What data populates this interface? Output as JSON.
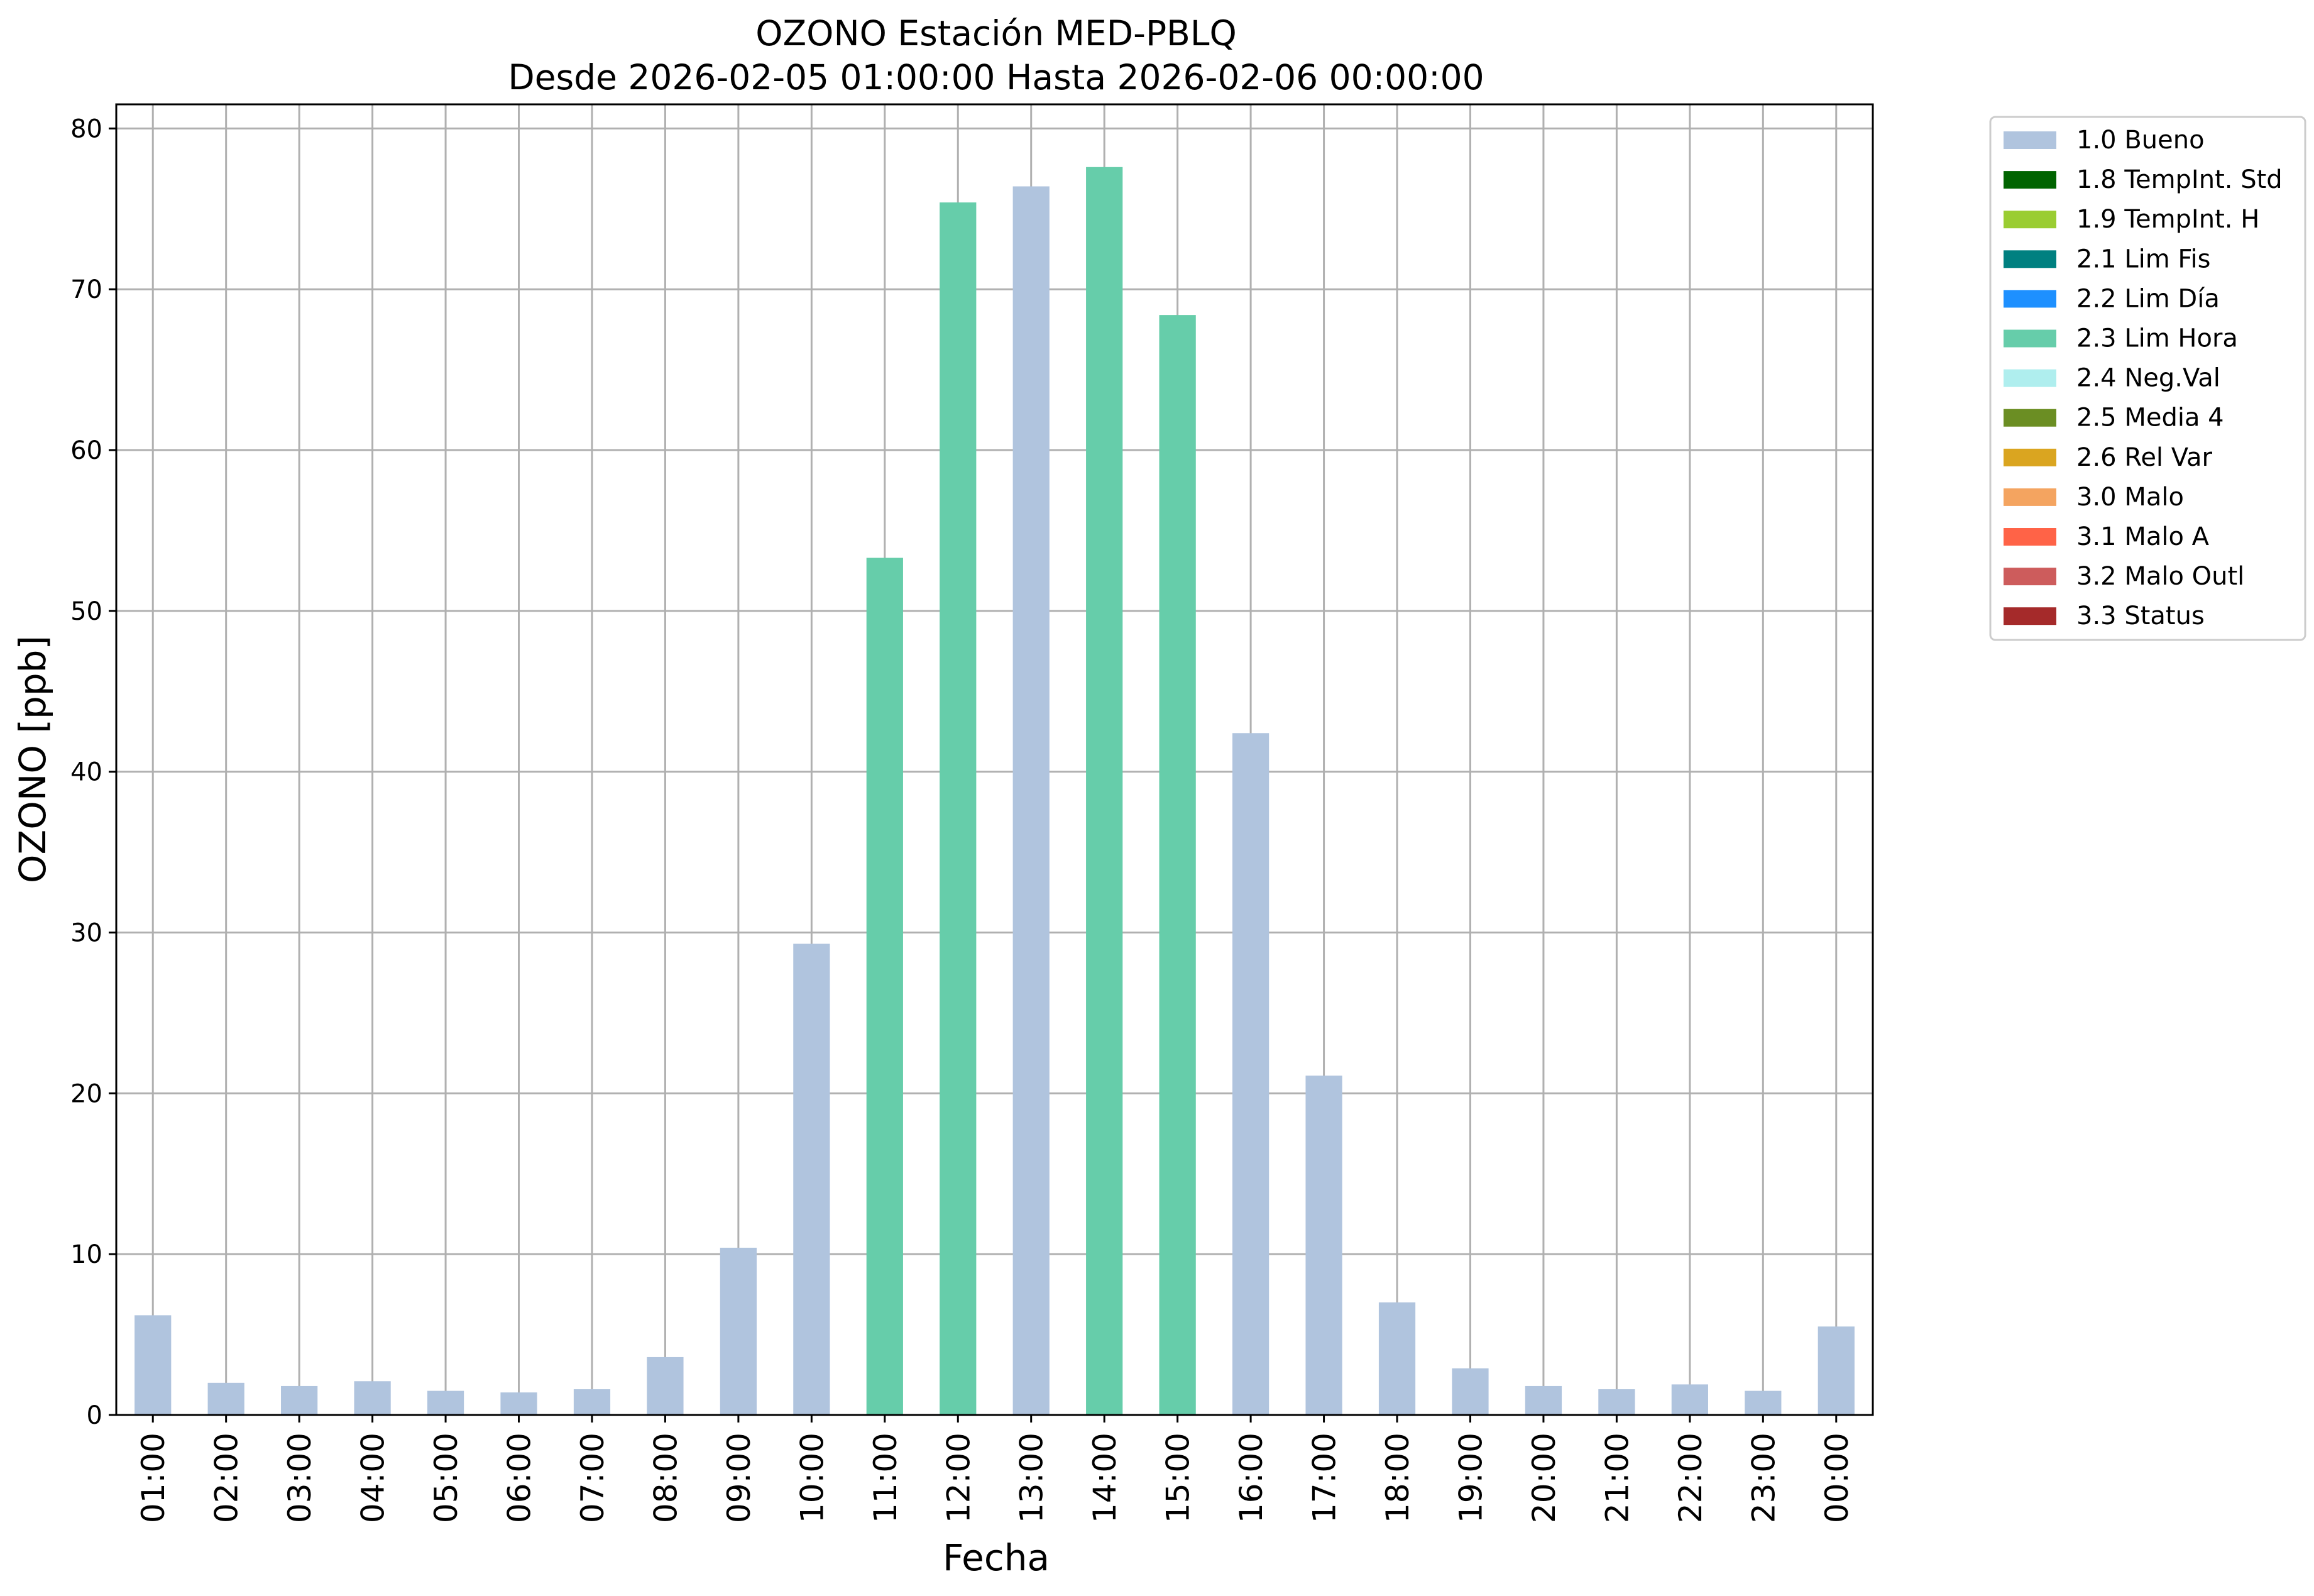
{
  "chart_data": {
    "type": "bar",
    "title": "OZONO Estación MED-PBLQ",
    "subtitle": "Desde 2026-02-05 01:00:00 Hasta 2026-02-06 00:00:00",
    "xlabel": "Fecha",
    "ylabel": "OZONO [ppb]",
    "ylim": [
      0,
      81.5
    ],
    "yticks": [
      0,
      10,
      20,
      30,
      40,
      50,
      60,
      70,
      80
    ],
    "grid": true,
    "legend_position": "outside-top-right",
    "categories": [
      "01:00",
      "02:00",
      "03:00",
      "04:00",
      "05:00",
      "06:00",
      "07:00",
      "08:00",
      "09:00",
      "10:00",
      "11:00",
      "12:00",
      "13:00",
      "14:00",
      "15:00",
      "16:00",
      "17:00",
      "18:00",
      "19:00",
      "20:00",
      "21:00",
      "22:00",
      "23:00",
      "00:00"
    ],
    "values": [
      6.2,
      2.0,
      1.8,
      2.1,
      1.5,
      1.4,
      1.6,
      3.6,
      10.4,
      29.3,
      53.3,
      75.4,
      76.4,
      77.6,
      68.4,
      42.4,
      21.1,
      7.0,
      2.9,
      1.8,
      1.6,
      1.9,
      1.5,
      5.5
    ],
    "value_flags": [
      "1.0 Bueno",
      "1.0 Bueno",
      "1.0 Bueno",
      "1.0 Bueno",
      "1.0 Bueno",
      "1.0 Bueno",
      "1.0 Bueno",
      "1.0 Bueno",
      "1.0 Bueno",
      "1.0 Bueno",
      "2.3 Lim Hora",
      "2.3 Lim Hora",
      "1.0 Bueno",
      "2.3 Lim Hora",
      "2.3 Lim Hora",
      "1.0 Bueno",
      "1.0 Bueno",
      "1.0 Bueno",
      "1.0 Bueno",
      "1.0 Bueno",
      "1.0 Bueno",
      "1.0 Bueno",
      "1.0 Bueno",
      "1.0 Bueno"
    ],
    "legend": [
      {
        "label": "1.0 Bueno",
        "color": "#b0c4de"
      },
      {
        "label": "1.8 TempInt. Std",
        "color": "#006400"
      },
      {
        "label": "1.9 TempInt. H",
        "color": "#9acd32"
      },
      {
        "label": "2.1 Lim Fis",
        "color": "#008080"
      },
      {
        "label": "2.2 Lim Día",
        "color": "#1e90ff"
      },
      {
        "label": "2.3 Lim Hora",
        "color": "#66cdaa"
      },
      {
        "label": "2.4 Neg.Val",
        "color": "#afeeee"
      },
      {
        "label": "2.5 Media 4",
        "color": "#6b8e23"
      },
      {
        "label": "2.6 Rel Var",
        "color": "#daa520"
      },
      {
        "label": "3.0 Malo",
        "color": "#f4a460"
      },
      {
        "label": "3.1 Malo A",
        "color": "#ff6347"
      },
      {
        "label": "3.2 Malo Outl",
        "color": "#cd5c5c"
      },
      {
        "label": "3.3 Status",
        "color": "#a52a2a"
      }
    ]
  }
}
